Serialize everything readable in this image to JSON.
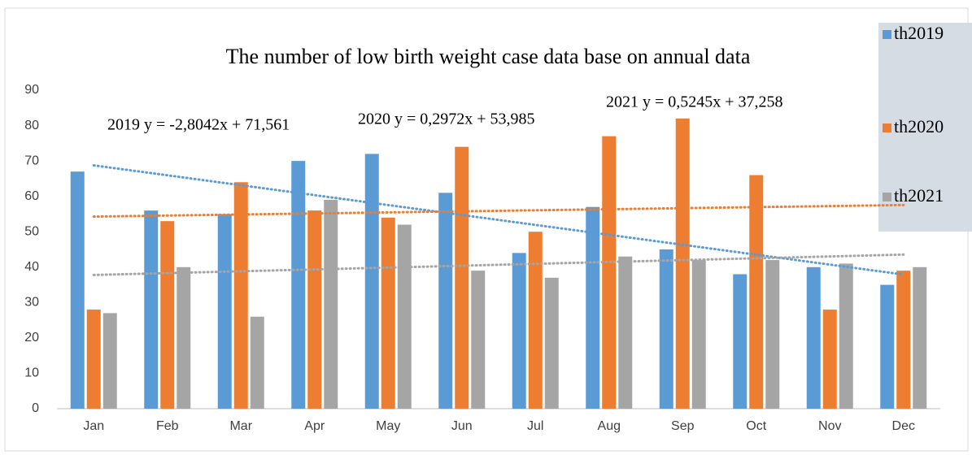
{
  "chart_data": {
    "type": "bar",
    "title": "The number of low birth weight case data base on annual data",
    "categories": [
      "Jan",
      "Feb",
      "Mar",
      "Apr",
      "May",
      "Jun",
      "Jul",
      "Aug",
      "Sep",
      "Oct",
      "Nov",
      "Dec"
    ],
    "series": [
      {
        "name": "th2019",
        "color": "#5b9bd5",
        "values": [
          67,
          56,
          55,
          70,
          72,
          61,
          44,
          57,
          45,
          38,
          40,
          35
        ],
        "trendline": {
          "slope": -2.8042,
          "intercept": 71.561,
          "label": "2019 y = -2,8042x + 71,561"
        }
      },
      {
        "name": "th2020",
        "color": "#ed7d31",
        "values": [
          28,
          53,
          64,
          56,
          54,
          74,
          50,
          77,
          82,
          66,
          28,
          39
        ],
        "trendline": {
          "slope": 0.2972,
          "intercept": 53.985,
          "label": "2020 y = 0,2972x + 53,985"
        }
      },
      {
        "name": "th2021",
        "color": "#a5a5a5",
        "values": [
          27,
          40,
          26,
          59,
          52,
          39,
          37,
          43,
          42,
          42,
          41,
          40
        ],
        "trendline": {
          "slope": 0.5245,
          "intercept": 37.258,
          "label": "2021 y = 0,5245x + 37,258"
        }
      }
    ],
    "ylim": [
      0,
      90
    ],
    "yticks": [
      0,
      10,
      20,
      30,
      40,
      50,
      60,
      70,
      80,
      90
    ],
    "grid": false,
    "legend": "right"
  }
}
